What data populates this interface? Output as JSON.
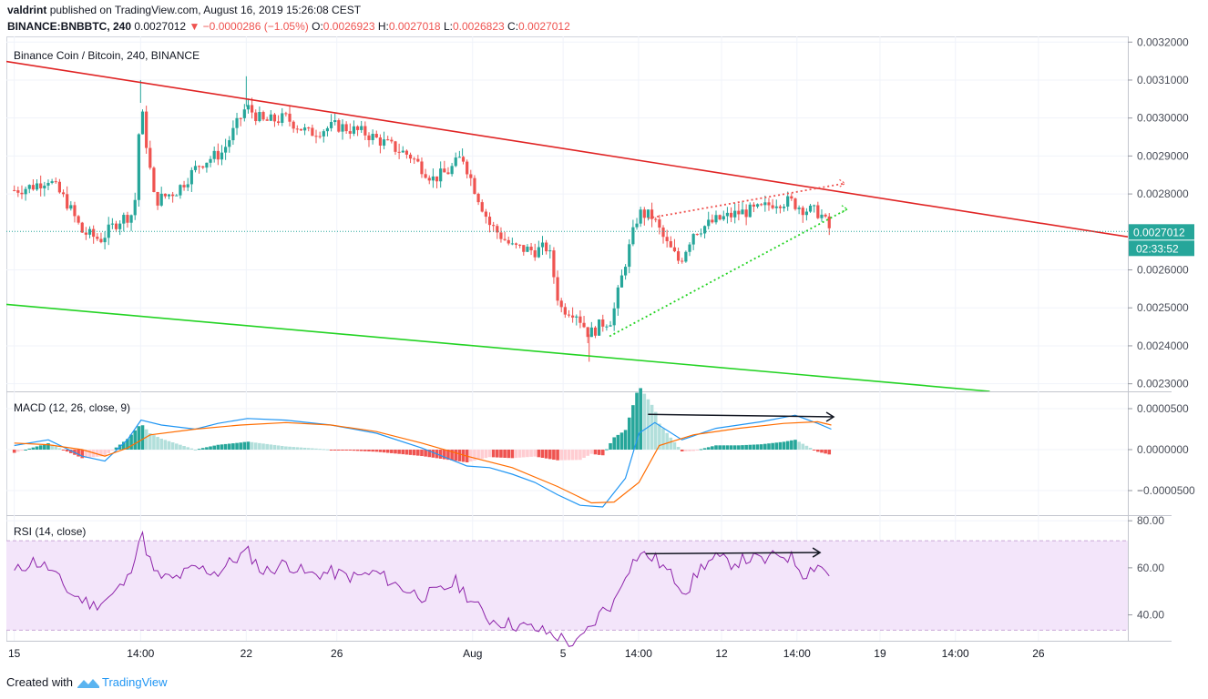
{
  "header": {
    "author": "valdrint",
    "published_text": "published on TradingView.com, August 16, 2019 15:26:08 CEST",
    "symbol": "BINANCE:BNBBTC, 240",
    "last": "0.0027012",
    "change_arrow": "▼",
    "change": "−0.0000286 (−1.05%)",
    "o_label": "O:",
    "o_value": "0.0026923",
    "h_label": "H:",
    "h_value": "0.0027018",
    "l_label": "L:",
    "l_value": "0.0026823",
    "c_label": "C:",
    "c_value": "0.0027012"
  },
  "footer": {
    "prefix": "Created with",
    "brand": "TradingView",
    "icon": "tradingview-logo-icon"
  },
  "colors": {
    "up": "#26a69a",
    "down": "#ef5350",
    "resistance": "#e02424",
    "support": "#23d323",
    "macd": "#2196f3",
    "signal": "#ff6d00",
    "rsi": "#8e24aa",
    "rsi_band": "#f3e5fa",
    "price_tag": "#26a69a",
    "timer_tag": "#26a69a"
  },
  "chart_data": [
    {
      "type": "candlestick",
      "title": "Binance Coin / Bitcoin, 240, BINANCE",
      "ylim": [
        0.00228,
        0.003215
      ],
      "y_ticks": [
        "0.0032000",
        "0.0031000",
        "0.0030000",
        "0.0029000",
        "0.0028000",
        "0.0026000",
        "0.0025000",
        "0.0024000",
        "0.0023000"
      ],
      "y_tick_values": [
        0.0032,
        0.0031,
        0.003,
        0.0029,
        0.0028,
        0.0026,
        0.0025,
        0.0024,
        0.0023
      ],
      "current_price_label": "0.0027012",
      "current_price": 0.0027012,
      "countdown_label": "02:33:52",
      "x_ticks": [
        "15",
        "14:00",
        "22",
        "26",
        "Aug",
        "5",
        "14:00",
        "12",
        "14:00",
        "19",
        "14:00",
        "26"
      ],
      "x_tick_times": [
        0,
        5.58,
        10.25,
        14.25,
        20.25,
        24.25,
        27.58,
        31.25,
        34.58,
        38.25,
        41.58,
        45.25
      ],
      "time_range": [
        -0.35,
        49.2
      ],
      "last_time": 36.1,
      "price_path": [
        [
          0,
          0.00281
        ],
        [
          0.8,
          0.00282
        ],
        [
          1.5,
          0.00284
        ],
        [
          2.3,
          0.00278
        ],
        [
          3,
          0.0027
        ],
        [
          3.8,
          0.00268
        ],
        [
          4.6,
          0.00273
        ],
        [
          5.3,
          0.00275
        ],
        [
          5.58,
          0.00304
        ],
        [
          6.2,
          0.00278
        ],
        [
          7.2,
          0.00281
        ],
        [
          8.2,
          0.00288
        ],
        [
          9.2,
          0.00291
        ],
        [
          10.25,
          0.00303
        ],
        [
          11,
          0.00299
        ],
        [
          12,
          0.003
        ],
        [
          13,
          0.00296
        ],
        [
          14.25,
          0.00298
        ],
        [
          15.5,
          0.00296
        ],
        [
          16.5,
          0.00293
        ],
        [
          17.5,
          0.0029
        ],
        [
          18.5,
          0.00284
        ],
        [
          19.2,
          0.00286
        ],
        [
          19.8,
          0.0029
        ],
        [
          20.3,
          0.00282
        ],
        [
          21,
          0.00272
        ],
        [
          22,
          0.00266
        ],
        [
          23,
          0.00265
        ],
        [
          23.6,
          0.00266
        ],
        [
          24.1,
          0.0025
        ],
        [
          24.8,
          0.00249
        ],
        [
          25.4,
          0.00243
        ],
        [
          26,
          0.00246
        ],
        [
          26.4,
          0.00247
        ],
        [
          27,
          0.00262
        ],
        [
          27.58,
          0.00275
        ],
        [
          28.2,
          0.00274
        ],
        [
          28.8,
          0.00267
        ],
        [
          29.4,
          0.00262
        ],
        [
          30,
          0.0027
        ],
        [
          31,
          0.00273
        ],
        [
          32,
          0.00275
        ],
        [
          33,
          0.00276
        ],
        [
          33.6,
          0.00278
        ],
        [
          34.3,
          0.00278
        ],
        [
          34.9,
          0.00276
        ],
        [
          35.6,
          0.00275
        ],
        [
          36.1,
          0.0027
        ]
      ],
      "lines": [
        {
          "name": "",
          "color": "resistance",
          "style": "solid",
          "points": [
            [
              -0.35,
              0.003149
            ],
            [
              49.2,
              0.002687
            ]
          ]
        },
        {
          "name": "",
          "color": "support",
          "style": "solid",
          "points": [
            [
              -0.35,
              0.002509
            ],
            [
              43.1,
              0.00228
            ]
          ]
        },
        {
          "name": "",
          "color": "down",
          "style": "dotted",
          "points": [
            [
              28,
              0.002736
            ],
            [
              36.7,
              0.002828
            ]
          ]
        },
        {
          "name": "",
          "color": "support",
          "style": "dotted",
          "points": [
            [
              26.3,
              0.002425
            ],
            [
              36.8,
              0.00276
            ]
          ]
        }
      ]
    },
    {
      "type": "bar+line",
      "title": "MACD (12, 26, close, 9)",
      "ylim": [
        -8e-05,
        7e-05
      ],
      "y_ticks": [
        "0.0000500",
        "0.0000000",
        "−0.0000500"
      ],
      "y_tick_values": [
        5e-05,
        0.0,
        -5e-05
      ],
      "macd_path": [
        [
          0,
          5e-06
        ],
        [
          1.5,
          1.2e-05
        ],
        [
          3,
          -8e-06
        ],
        [
          4,
          -1.4e-05
        ],
        [
          5,
          1.2e-05
        ],
        [
          5.6,
          3.6e-05
        ],
        [
          6.5,
          3e-05
        ],
        [
          8,
          2.5e-05
        ],
        [
          9,
          3.2e-05
        ],
        [
          10.3,
          3.8e-05
        ],
        [
          12,
          3.6e-05
        ],
        [
          14,
          3e-05
        ],
        [
          16,
          2e-05
        ],
        [
          18,
          2e-06
        ],
        [
          20,
          -2e-05
        ],
        [
          21,
          -2.2e-05
        ],
        [
          22,
          -3e-05
        ],
        [
          23,
          -4e-05
        ],
        [
          24,
          -5.5e-05
        ],
        [
          25,
          -6.8e-05
        ],
        [
          26,
          -7e-05
        ],
        [
          27,
          -3.5e-05
        ],
        [
          27.6,
          2e-05
        ],
        [
          28.3,
          3.3e-05
        ],
        [
          29.5,
          1.2e-05
        ],
        [
          31,
          2.6e-05
        ],
        [
          32,
          3e-05
        ],
        [
          33,
          3.4e-05
        ],
        [
          34.5,
          4.2e-05
        ],
        [
          35.5,
          3.2e-05
        ],
        [
          36.1,
          2.5e-05
        ]
      ],
      "signal_path": [
        [
          0,
          8e-06
        ],
        [
          1.5,
          6e-06
        ],
        [
          3,
          0.0
        ],
        [
          4,
          -8e-06
        ],
        [
          5,
          2e-06
        ],
        [
          6,
          1.8e-05
        ],
        [
          8,
          2.5e-05
        ],
        [
          10,
          3e-05
        ],
        [
          12,
          3.3e-05
        ],
        [
          14,
          3e-05
        ],
        [
          16,
          2.2e-05
        ],
        [
          18,
          8e-06
        ],
        [
          20,
          -8e-06
        ],
        [
          22,
          -2.2e-05
        ],
        [
          24,
          -4.5e-05
        ],
        [
          25.5,
          -6.5e-05
        ],
        [
          26.5,
          -6.4e-05
        ],
        [
          27.6,
          -4e-05
        ],
        [
          28.5,
          5e-06
        ],
        [
          30,
          1.8e-05
        ],
        [
          32,
          2.6e-05
        ],
        [
          34,
          3.2e-05
        ],
        [
          35.5,
          3.4e-05
        ],
        [
          36.1,
          3e-05
        ]
      ],
      "annotation_arrow": [
        [
          28,
          4.3e-05
        ],
        [
          36.2,
          4e-05
        ]
      ]
    },
    {
      "type": "line",
      "title": "RSI (14, close)",
      "ylim": [
        29,
        82
      ],
      "band": [
        33.5,
        71.5
      ],
      "y_ticks": [
        "80.00",
        "60.00",
        "40.00"
      ],
      "y_tick_values": [
        80,
        60,
        40
      ],
      "rsi_path": [
        [
          0,
          58
        ],
        [
          0.8,
          63
        ],
        [
          1.5,
          60
        ],
        [
          2.5,
          49
        ],
        [
          3.5,
          44
        ],
        [
          4.3,
          48
        ],
        [
          5,
          55
        ],
        [
          5.6,
          75
        ],
        [
          6.2,
          57
        ],
        [
          7,
          55
        ],
        [
          8,
          60
        ],
        [
          9,
          58
        ],
        [
          9.5,
          62
        ],
        [
          10.3,
          67
        ],
        [
          11,
          58
        ],
        [
          12,
          62
        ],
        [
          13,
          57
        ],
        [
          14,
          58
        ],
        [
          15,
          56
        ],
        [
          16,
          58
        ],
        [
          17,
          52
        ],
        [
          18,
          48
        ],
        [
          18.8,
          50
        ],
        [
          19.5,
          54
        ],
        [
          20.3,
          45
        ],
        [
          21,
          38
        ],
        [
          22,
          36
        ],
        [
          23,
          34
        ],
        [
          24,
          31
        ],
        [
          24.8,
          27
        ],
        [
          25.5,
          35
        ],
        [
          26,
          42
        ],
        [
          26.5,
          45
        ],
        [
          27,
          58
        ],
        [
          27.6,
          66
        ],
        [
          28.3,
          64
        ],
        [
          29,
          57
        ],
        [
          29.7,
          50
        ],
        [
          30.4,
          61
        ],
        [
          31,
          64
        ],
        [
          31.7,
          62
        ],
        [
          32.5,
          64
        ],
        [
          33.2,
          63
        ],
        [
          33.8,
          66
        ],
        [
          34.4,
          64
        ],
        [
          34.9,
          57
        ],
        [
          35.5,
          62
        ],
        [
          36.1,
          56
        ]
      ],
      "annotation_arrow": [
        [
          27.9,
          66
        ],
        [
          35.6,
          66.5
        ]
      ]
    }
  ]
}
